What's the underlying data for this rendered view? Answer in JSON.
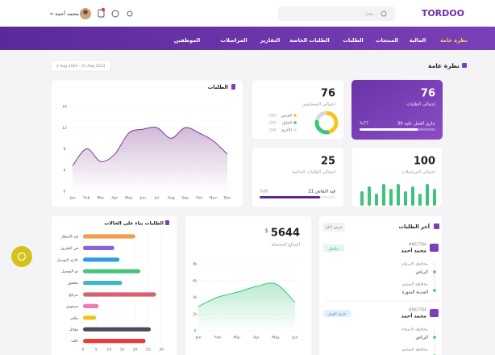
{
  "header": {
    "logo": "TORDOO",
    "search": "بحث ...",
    "user": "محمد أحمد"
  },
  "nav": [
    "نظرة عامة",
    "المالية",
    "المنتجات",
    "الطلبات",
    "الطلبات الخاصة",
    "التقارير",
    "المراسلات",
    "الموظفين"
  ],
  "overview": {
    "title": "نظرة عامة",
    "date_range": "2 Aug 2023 - 31 Aug 2023"
  },
  "total_orders": {
    "value": 76,
    "label": "إجمالي الطلبات",
    "in_progress": "30 جاري العمل عليه",
    "progress": 77,
    "progress_label": "%77"
  },
  "recipients": {
    "value": 76,
    "label": "اجمالي المستلمين"
  },
  "messages": {
    "value": 100,
    "label": "اجمالي المراسلات"
  },
  "special_orders": {
    "value": 25,
    "label": "اجمالي الطلبات الخاصة",
    "discussion": "21 قيد النقاش",
    "progress": 80,
    "progress_label": "%80"
  },
  "collected": {
    "value": 5644,
    "currency": "$",
    "label": "المبالغ المحصلة"
  },
  "latest_orders": {
    "title": "آخر الطلبات",
    "view_all": "عرض الكل",
    "orders": [
      {
        "id": "#867784",
        "name": "محمد أحمد",
        "status": "مكتمل",
        "pickup_label": "محافظة الاستلام",
        "pickup": "الرياض",
        "delivery_label": "محافظة التسليم",
        "delivery": "المدينة المنورة"
      },
      {
        "id": "#867784",
        "name": "محمد أحمد",
        "status": "جاري العمل",
        "pickup_label": "محافظة الاستلام",
        "pickup": "الرياض",
        "delivery_label": "محافظة التسليم"
      }
    ]
  },
  "chart_data": [
    {
      "type": "line",
      "title": "الطلبات",
      "categories": [
        "Jan",
        "Feb",
        "Mar",
        "Apr",
        "May",
        "Jun",
        "Jul",
        "Aug",
        "Sep",
        "Oct",
        "Nov",
        "Dec"
      ],
      "values": [
        4.8,
        8,
        5.6,
        7,
        11,
        11.7,
        12,
        10,
        12,
        11,
        9.5,
        7
      ],
      "color": "#7b3a8f",
      "ylim": [
        0,
        16
      ],
      "yticks": [
        0,
        4,
        8,
        12,
        16
      ]
    },
    {
      "type": "hbar",
      "title": "الطلبات بناء على الحالات",
      "categories": [
        "قيد الانتظار",
        "في الطريق",
        "جاري التوصيل",
        "تم التوصيل",
        "محجوز",
        "مرتجع",
        "مرفوض",
        "ملغي",
        "مؤجل",
        "تالف"
      ],
      "values": [
        20,
        12,
        14,
        22,
        15,
        28,
        6,
        5,
        26,
        24
      ],
      "colors": [
        "#f39c4a",
        "#8e63d6",
        "#2f9be0",
        "#45c47a",
        "#3fb6c9",
        "#d9606e",
        "#f07ab5",
        "#f0c419",
        "#4a4a5a",
        "#ee3b3b"
      ],
      "xlim": [
        0,
        30
      ],
      "xticks": [
        0,
        5,
        10,
        15,
        20,
        25,
        30
      ]
    },
    {
      "type": "line",
      "categories": [
        "Jan",
        "Feb",
        "Mar",
        "Apr",
        "May",
        "Jun"
      ],
      "values": [
        2900,
        4000,
        4600,
        5300,
        5600,
        3400
      ],
      "color": "#3cc47c",
      "ylim": [
        0,
        8000
      ],
      "yticks": [
        0,
        {
          "value": 2000,
          "label": "2k"
        },
        {
          "value": 4000,
          "label": "4k"
        },
        {
          "value": 6000,
          "label": "6k"
        },
        {
          "value": 8000,
          "label": "8k"
        }
      ]
    },
    {
      "type": "spark",
      "values": [
        6,
        8,
        5,
        9,
        7,
        9,
        6,
        8,
        5,
        9,
        7
      ],
      "color": "#3cc47c"
    },
    {
      "type": "pie",
      "labels": [
        "القدس",
        "الخليل",
        "الأخرى"
      ],
      "values": [
        35,
        25,
        16
      ],
      "value_labels": [
        "(35)",
        "(25)",
        "(16)"
      ],
      "colors": [
        "#f5c518",
        "#3cc47c",
        "#d9d9de"
      ]
    }
  ]
}
